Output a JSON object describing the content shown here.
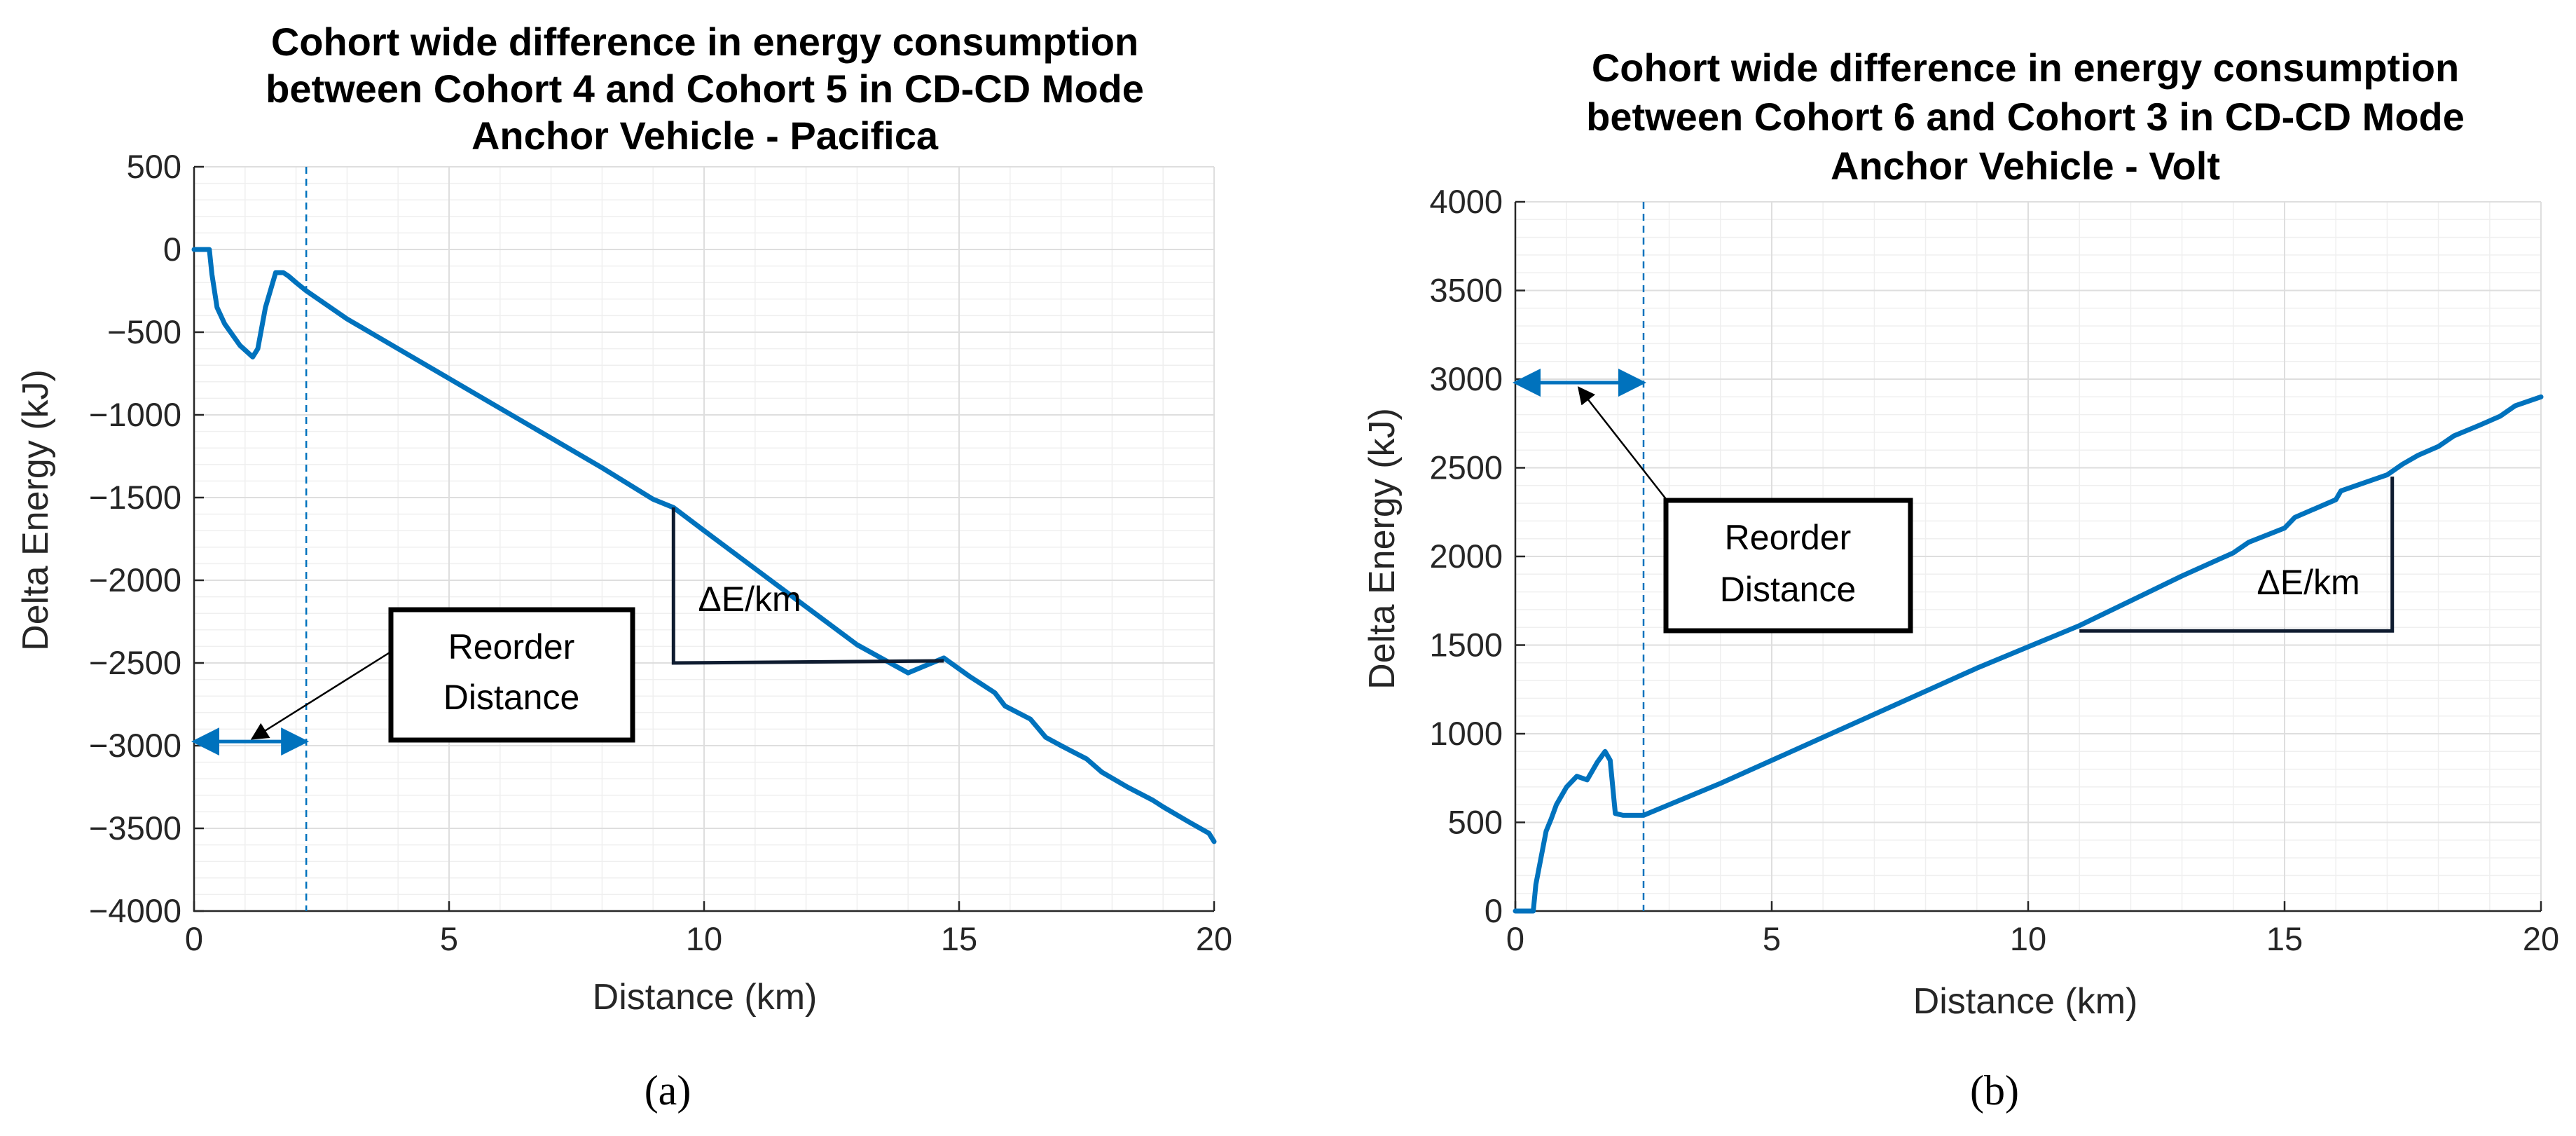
{
  "colors": {
    "series": "#0072BD",
    "text": "#262626"
  },
  "chart_data": [
    {
      "type": "line",
      "title_lines": [
        "Cohort wide difference in energy consumption",
        "between Cohort 4 and Cohort 5 in CD-CD Mode",
        "Anchor Vehicle - Pacifica"
      ],
      "xlabel": "Distance (km)",
      "ylabel": "Delta Energy (kJ)",
      "xlim": [
        0,
        20
      ],
      "ylim": [
        -4000,
        500
      ],
      "xticks": [
        0,
        5,
        10,
        15,
        20
      ],
      "xtick_labels": [
        "0",
        "5",
        "10",
        "15",
        "20"
      ],
      "yticks": [
        500,
        0,
        -500,
        -1000,
        -1500,
        -2000,
        -2500,
        -3000,
        -3500,
        -4000
      ],
      "ytick_labels": [
        "500",
        "0",
        "−500",
        "−1000",
        "−1500",
        "−2000",
        "−2500",
        "−3000",
        "−3500",
        "−4000"
      ],
      "grid": true,
      "series": [
        {
          "name": "Delta Energy",
          "x": [
            0,
            0.3,
            0.35,
            0.45,
            0.6,
            0.9,
            1.15,
            1.25,
            1.4,
            1.6,
            1.75,
            1.85,
            2.0,
            2.2,
            3,
            4,
            5,
            6,
            7,
            8,
            9,
            9.4,
            10,
            11,
            12,
            13,
            14,
            14.7,
            15.2,
            15.7,
            15.9,
            16.4,
            16.7,
            17,
            17.5,
            17.8,
            18.3,
            18.8,
            19.0,
            19.5,
            19.9,
            20
          ],
          "y": [
            0,
            0,
            -150,
            -350,
            -450,
            -580,
            -650,
            -600,
            -350,
            -140,
            -140,
            -160,
            -200,
            -250,
            -420,
            -600,
            -780,
            -960,
            -1140,
            -1320,
            -1510,
            -1560,
            -1700,
            -1930,
            -2160,
            -2390,
            -2560,
            -2470,
            -2580,
            -2680,
            -2760,
            -2840,
            -2950,
            -3000,
            -3080,
            -3160,
            -3250,
            -3330,
            -3370,
            -3460,
            -3530,
            -3580
          ]
        }
      ],
      "annotations": {
        "reorder_distance_km": 2.2,
        "reorder_arrow_y": -2975,
        "reorder_label_lines": [
          "Reorder",
          "Distance"
        ],
        "slope_label": "ΔE/km",
        "slope_triangle": {
          "x1": 9.4,
          "y1": -1560,
          "x2": 14.7,
          "y2": -2500
        }
      },
      "panel_label": "(a)"
    },
    {
      "type": "line",
      "title_lines": [
        "Cohort wide difference in energy consumption",
        "between Cohort 6 and Cohort 3 in CD-CD Mode",
        "Anchor Vehicle - Volt"
      ],
      "xlabel": "Distance (km)",
      "ylabel": "Delta Energy (kJ)",
      "xlim": [
        0,
        20
      ],
      "ylim": [
        0,
        4000
      ],
      "xticks": [
        0,
        5,
        10,
        15,
        20
      ],
      "xtick_labels": [
        "0",
        "5",
        "10",
        "15",
        "20"
      ],
      "yticks": [
        0,
        500,
        1000,
        1500,
        2000,
        2500,
        3000,
        3500,
        4000
      ],
      "ytick_labels": [
        "0",
        "500",
        "1000",
        "1500",
        "2000",
        "2500",
        "3000",
        "3500",
        "4000"
      ],
      "grid": true,
      "series": [
        {
          "name": "Delta Energy",
          "x": [
            0,
            0.35,
            0.4,
            0.5,
            0.6,
            0.7,
            0.8,
            1.0,
            1.2,
            1.4,
            1.6,
            1.75,
            1.85,
            1.95,
            2.1,
            2.5,
            3,
            4,
            5,
            6,
            7,
            8,
            9,
            10,
            11,
            12,
            13,
            14,
            14.3,
            15,
            15.2,
            16,
            16.1,
            17,
            17.3,
            17.6,
            18.0,
            18.3,
            18.8,
            19.2,
            19.5,
            20
          ],
          "y": [
            0,
            0,
            150,
            300,
            450,
            520,
            600,
            700,
            760,
            740,
            840,
            900,
            850,
            550,
            540,
            540,
            600,
            720,
            850,
            980,
            1110,
            1240,
            1370,
            1490,
            1610,
            1750,
            1890,
            2020,
            2080,
            2160,
            2220,
            2320,
            2370,
            2460,
            2520,
            2570,
            2620,
            2680,
            2740,
            2790,
            2850,
            2900
          ]
        }
      ],
      "annotations": {
        "reorder_distance_km": 2.5,
        "reorder_arrow_y": 2980,
        "reorder_label_lines": [
          "Reorder",
          "Distance"
        ],
        "slope_label": "ΔE/km",
        "slope_triangle": {
          "x1": 11,
          "y1": 1580,
          "x2": 17.1,
          "y2": 2450
        }
      },
      "panel_label": "(b)"
    }
  ]
}
